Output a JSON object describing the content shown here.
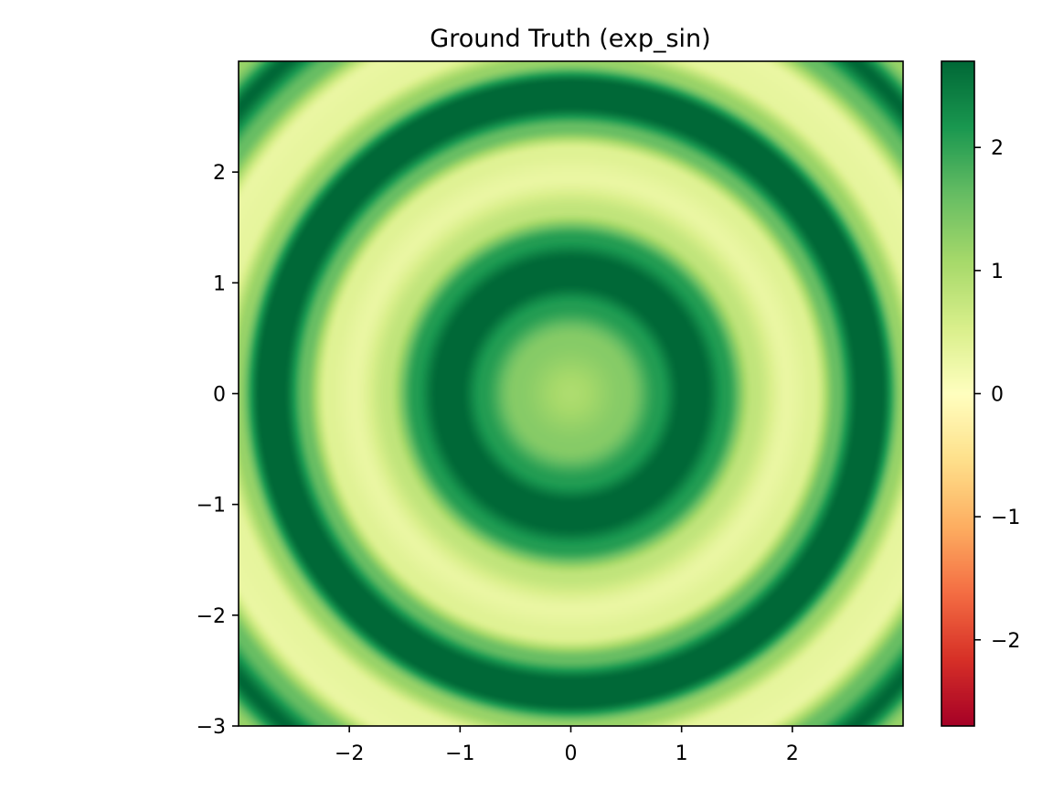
{
  "chart_data": {
    "type": "heatmap",
    "title": "Ground Truth (exp_sin)",
    "xlabel": "",
    "ylabel": "",
    "xlim": [
      -3,
      3
    ],
    "ylim": [
      -3,
      3
    ],
    "x_ticks": [
      -2,
      -1,
      0,
      1,
      2
    ],
    "x_tick_labels": [
      "−2",
      "−1",
      "0",
      "1",
      "2"
    ],
    "y_ticks": [
      -3,
      -2,
      -1,
      0,
      1,
      2
    ],
    "y_tick_labels": [
      "−3",
      "−2",
      "−1",
      "0",
      "1",
      "2"
    ],
    "colormap": "RdYlGn",
    "clim": [
      -2.7,
      2.7
    ],
    "colorbar_ticks": [
      -2,
      -1,
      0,
      1,
      2
    ],
    "colorbar_tick_labels": [
      "−2",
      "−1",
      "0",
      "1",
      "2"
    ],
    "grid": false,
    "field_description": "concentric rings",
    "radial_profile": {
      "r": [
        0,
        0.5,
        0.8,
        1.0,
        1.2,
        1.4,
        1.65,
        1.95,
        2.2,
        2.4,
        2.6,
        2.8,
        3.0,
        3.2,
        3.45,
        3.7,
        3.95,
        4.2
      ],
      "value": [
        1.0,
        1.35,
        2.1,
        2.7,
        2.7,
        2.1,
        0.8,
        0.3,
        0.45,
        1.6,
        2.7,
        2.7,
        1.2,
        0.35,
        0.3,
        1.6,
        2.7,
        1.2
      ]
    }
  }
}
